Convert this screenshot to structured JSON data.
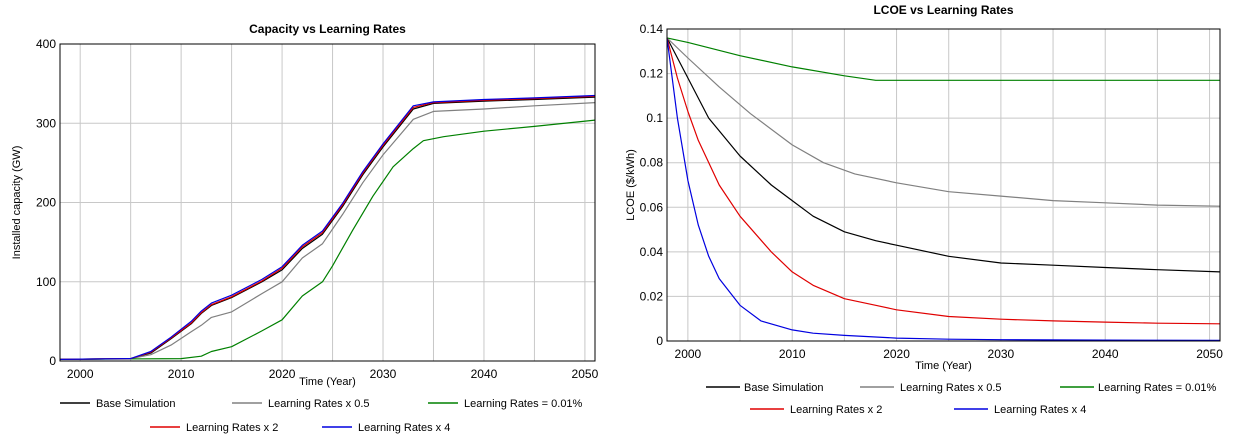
{
  "chart_data": [
    {
      "type": "line",
      "title": "Capacity vs Learning Rates",
      "xlabel": "Time (Year)",
      "ylabel": "Installed capacity (GW)",
      "xlim": [
        1998,
        2051
      ],
      "ylim": [
        0,
        400
      ],
      "xticks": [
        2000,
        2010,
        2020,
        2030,
        2040,
        2050
      ],
      "yticks": [
        0,
        100,
        200,
        300,
        400
      ],
      "grid": true,
      "legend_position": "bottom",
      "legend_order": [
        0,
        1,
        2,
        3,
        4
      ],
      "series": [
        {
          "name": "Base Simulation",
          "color": "#000000",
          "x": [
            1998,
            2005,
            2007,
            2009,
            2011,
            2012,
            2013,
            2015,
            2018,
            2020,
            2022,
            2024,
            2026,
            2028,
            2030,
            2033,
            2035,
            2040,
            2045,
            2051
          ],
          "y": [
            2,
            3,
            10,
            28,
            47,
            60,
            70,
            80,
            100,
            115,
            142,
            160,
            195,
            235,
            270,
            318,
            325,
            328,
            330,
            333
          ]
        },
        {
          "name": "Learning Rates x 0.5",
          "color": "#808080",
          "x": [
            1998,
            2005,
            2007,
            2009,
            2011,
            2012,
            2013,
            2015,
            2018,
            2020,
            2022,
            2024,
            2026,
            2028,
            2030,
            2033,
            2035,
            2040,
            2045,
            2051
          ],
          "y": [
            2,
            3,
            8,
            20,
            37,
            45,
            55,
            62,
            85,
            100,
            130,
            148,
            185,
            225,
            260,
            305,
            315,
            318,
            322,
            326
          ]
        },
        {
          "name": "Learning Rates = 0.01%",
          "color": "#008000",
          "x": [
            1998,
            2010,
            2012,
            2013,
            2015,
            2018,
            2020,
            2022,
            2024,
            2025,
            2027,
            2029,
            2031,
            2033,
            2034,
            2036,
            2040,
            2045,
            2051
          ],
          "y": [
            2,
            3,
            6,
            12,
            18,
            38,
            52,
            82,
            100,
            120,
            165,
            208,
            245,
            268,
            278,
            283,
            290,
            296,
            304
          ]
        },
        {
          "name": "Learning Rates x 2",
          "color": "#e00000",
          "x": [
            1998,
            2005,
            2007,
            2009,
            2011,
            2012,
            2013,
            2015,
            2018,
            2020,
            2022,
            2024,
            2026,
            2028,
            2030,
            2033,
            2035,
            2040,
            2045,
            2051
          ],
          "y": [
            2,
            3,
            11,
            29,
            48,
            61,
            71,
            81,
            101,
            117,
            144,
            162,
            197,
            237,
            272,
            320,
            326,
            329,
            331,
            334
          ]
        },
        {
          "name": "Learning Rates x 4",
          "color": "#0000e0",
          "x": [
            1998,
            2005,
            2007,
            2009,
            2011,
            2012,
            2013,
            2015,
            2018,
            2020,
            2022,
            2024,
            2026,
            2028,
            2030,
            2033,
            2035,
            2040,
            2045,
            2051
          ],
          "y": [
            2,
            3,
            12,
            30,
            50,
            63,
            73,
            83,
            103,
            119,
            146,
            164,
            199,
            239,
            274,
            322,
            327,
            330,
            332,
            335
          ]
        }
      ]
    },
    {
      "type": "line",
      "title": "LCOE vs Learning Rates",
      "xlabel": "Time (Year)",
      "ylabel": "LCOE ($/kWh)",
      "xlim": [
        1998,
        2051
      ],
      "ylim": [
        0,
        0.14
      ],
      "xticks": [
        2000,
        2010,
        2020,
        2030,
        2040,
        2050
      ],
      "yticks": [
        0,
        0.02,
        0.04,
        0.06,
        0.08,
        0.1,
        0.12,
        0.14
      ],
      "grid": true,
      "legend_position": "bottom",
      "legend_order": [
        0,
        1,
        2,
        3,
        4
      ],
      "series": [
        {
          "name": "Base Simulation",
          "color": "#000000",
          "x": [
            1998,
            2000,
            2002,
            2005,
            2008,
            2010,
            2012,
            2015,
            2018,
            2020,
            2025,
            2030,
            2035,
            2040,
            2045,
            2051
          ],
          "y": [
            0.136,
            0.118,
            0.1,
            0.083,
            0.07,
            0.063,
            0.056,
            0.049,
            0.045,
            0.043,
            0.038,
            0.035,
            0.034,
            0.033,
            0.032,
            0.031
          ]
        },
        {
          "name": "Learning Rates x 0.5",
          "color": "#808080",
          "x": [
            1998,
            2000,
            2003,
            2006,
            2010,
            2013,
            2016,
            2020,
            2025,
            2030,
            2035,
            2040,
            2045,
            2051
          ],
          "y": [
            0.136,
            0.127,
            0.114,
            0.102,
            0.088,
            0.08,
            0.075,
            0.071,
            0.067,
            0.065,
            0.063,
            0.062,
            0.061,
            0.0605
          ]
        },
        {
          "name": "Learning Rates = 0.01%",
          "color": "#008000",
          "x": [
            1998,
            2000,
            2005,
            2010,
            2015,
            2018,
            2020,
            2025,
            2030,
            2040,
            2051
          ],
          "y": [
            0.136,
            0.134,
            0.128,
            0.123,
            0.119,
            0.117,
            0.117,
            0.117,
            0.117,
            0.117,
            0.117
          ]
        },
        {
          "name": "Learning Rates x 2",
          "color": "#e00000",
          "x": [
            1998,
            1999,
            2000,
            2001,
            2003,
            2005,
            2008,
            2010,
            2012,
            2015,
            2018,
            2020,
            2025,
            2030,
            2035,
            2040,
            2045,
            2051
          ],
          "y": [
            0.136,
            0.118,
            0.103,
            0.09,
            0.07,
            0.056,
            0.04,
            0.031,
            0.025,
            0.019,
            0.016,
            0.014,
            0.011,
            0.0098,
            0.009,
            0.0085,
            0.008,
            0.0077
          ]
        },
        {
          "name": "Learning Rates x 4",
          "color": "#0000e0",
          "x": [
            1998,
            1999,
            2000,
            2001,
            2002,
            2003,
            2005,
            2007,
            2010,
            2012,
            2015,
            2020,
            2025,
            2030,
            2040,
            2051
          ],
          "y": [
            0.136,
            0.1,
            0.072,
            0.052,
            0.038,
            0.028,
            0.016,
            0.009,
            0.005,
            0.0035,
            0.0025,
            0.0013,
            0.0008,
            0.0006,
            0.0004,
            0.0003
          ]
        }
      ]
    }
  ]
}
